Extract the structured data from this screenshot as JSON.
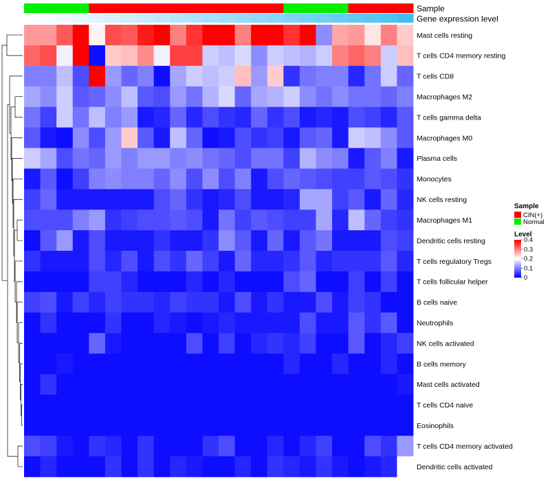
{
  "chart_data": {
    "type": "heatmap",
    "title": "",
    "clustering": "rows",
    "n_samples": 24,
    "annotation_tracks": [
      {
        "label": "Sample",
        "values": [
          "Normal",
          "Normal",
          "Normal",
          "Normal",
          "CIN(+)",
          "CIN(+)",
          "CIN(+)",
          "CIN(+)",
          "CIN(+)",
          "CIN(+)",
          "CIN(+)",
          "CIN(+)",
          "CIN(+)",
          "CIN(+)",
          "CIN(+)",
          "CIN(+)",
          "Normal",
          "Normal",
          "Normal",
          "Normal",
          "CIN(+)",
          "CIN(+)",
          "CIN(+)",
          "CIN(+)"
        ]
      },
      {
        "label": "Gene expression level",
        "values": [
          0,
          0.04,
          0.08,
          0.13,
          0.17,
          0.21,
          0.25,
          0.29,
          0.33,
          0.38,
          0.42,
          0.46,
          0.5,
          0.54,
          0.58,
          0.63,
          0.67,
          0.71,
          0.75,
          0.79,
          0.83,
          0.88,
          0.92,
          1.0
        ]
      }
    ],
    "sample_colors": {
      "CIN(+)": "#ff0000",
      "Normal": "#00ee00"
    },
    "level_colors": {
      "low": "#ffffff",
      "high": "#40bff0"
    },
    "rows": [
      "Mast cells resting",
      "T cells CD4 memory resting",
      "T cells CD8",
      "Macrophages M2",
      "T cells gamma delta",
      "Macrophages M0",
      "Plasma cells",
      "Monocytes",
      "NK cells resting",
      "Macrophages M1",
      "Dendritic cells resting",
      "T cells regulatory  Tregs",
      "T cells follicular helper",
      "B cells naive",
      "Neutrophils",
      "NK cells activated",
      "B cells memory",
      "Mast cells activated",
      "T cells CD4 naive",
      "Eosinophils",
      "T cells CD4 memory activated",
      "Dendritic cells activated"
    ],
    "values": [
      [
        0.28,
        0.28,
        0.33,
        0.4,
        0.21,
        0.34,
        0.33,
        0.38,
        0.4,
        0.3,
        0.36,
        0.4,
        0.4,
        0.3,
        0.4,
        0.4,
        0.36,
        0.4,
        0.11,
        0.27,
        0.28,
        0.22,
        0.3,
        0.24
      ],
      [
        0.32,
        0.34,
        0.19,
        0.4,
        0.01,
        0.24,
        0.25,
        0.29,
        0.19,
        0.35,
        0.35,
        0.16,
        0.15,
        0.17,
        0.11,
        0.16,
        0.15,
        0.14,
        0.16,
        0.3,
        0.32,
        0.3,
        0.16,
        0.25
      ],
      [
        0.1,
        0.1,
        0.15,
        0.06,
        0.4,
        0.12,
        0.08,
        0.1,
        0.01,
        0.13,
        0.16,
        0.15,
        0.16,
        0.25,
        0.12,
        0.24,
        0.04,
        0.09,
        0.1,
        0.1,
        0.03,
        0.09,
        0.16,
        0.08
      ],
      [
        0.13,
        0.11,
        0.16,
        0.07,
        0.08,
        0.11,
        0.15,
        0.07,
        0.06,
        0.12,
        0.09,
        0.14,
        0.17,
        0.08,
        0.13,
        0.14,
        0.16,
        0.11,
        0.09,
        0.11,
        0.09,
        0.09,
        0.08,
        0.1
      ],
      [
        0.09,
        0.05,
        0.16,
        0.09,
        0.15,
        0.1,
        0.12,
        0.02,
        0.03,
        0.08,
        0.03,
        0.06,
        0.04,
        0.03,
        0.08,
        0.04,
        0.06,
        0.02,
        0.03,
        0.02,
        0.06,
        0.05,
        0.03,
        0.07
      ],
      [
        0.07,
        0.02,
        0.01,
        0.11,
        0.06,
        0.12,
        0.24,
        0.07,
        0.02,
        0.15,
        0.08,
        0.01,
        0.02,
        0.06,
        0.04,
        0.05,
        0.02,
        0.07,
        0.08,
        0.02,
        0.16,
        0.15,
        0.11,
        0.07
      ],
      [
        0.16,
        0.13,
        0.06,
        0.09,
        0.08,
        0.12,
        0.1,
        0.12,
        0.12,
        0.1,
        0.11,
        0.09,
        0.08,
        0.06,
        0.09,
        0.09,
        0.05,
        0.14,
        0.11,
        0.1,
        0.02,
        0.07,
        0.1,
        0.02
      ],
      [
        0.02,
        0.07,
        0.01,
        0.05,
        0.1,
        0.11,
        0.1,
        0.1,
        0.08,
        0.11,
        0.06,
        0.11,
        0.06,
        0.1,
        0.02,
        0.06,
        0.08,
        0.07,
        0.06,
        0.05,
        0.05,
        0.07,
        0.06,
        0.04
      ],
      [
        0.05,
        0.08,
        0.02,
        0.02,
        0.02,
        0.02,
        0.02,
        0.02,
        0.06,
        0.08,
        0.04,
        0.02,
        0.03,
        0.06,
        0.02,
        0.02,
        0.03,
        0.13,
        0.13,
        0.05,
        0.07,
        0.02,
        0.08,
        0.03
      ],
      [
        0.06,
        0.06,
        0.06,
        0.1,
        0.12,
        0.04,
        0.05,
        0.06,
        0.06,
        0.07,
        0.06,
        0.02,
        0.09,
        0.05,
        0.07,
        0.06,
        0.05,
        0.05,
        0.13,
        0.03,
        0.15,
        0.08,
        0.05,
        0.04
      ],
      [
        0.01,
        0.07,
        0.12,
        0.02,
        0.06,
        0.02,
        0.02,
        0.02,
        0.04,
        0.02,
        0.02,
        0.04,
        0.11,
        0.07,
        0.02,
        0.08,
        0.02,
        0.07,
        0.09,
        0.02,
        0.02,
        0.02,
        0.06,
        0.05
      ],
      [
        0.04,
        0.02,
        0.02,
        0.02,
        0.06,
        0.03,
        0.06,
        0.02,
        0.06,
        0.04,
        0.08,
        0.05,
        0.02,
        0.08,
        0.03,
        0.03,
        0.04,
        0.07,
        0.03,
        0.04,
        0.04,
        0.04,
        0.07,
        0.03
      ],
      [
        0.01,
        0.01,
        0.01,
        0.01,
        0.05,
        0.05,
        0.03,
        0.01,
        0.01,
        0.01,
        0.03,
        0.01,
        0.03,
        0.01,
        0.01,
        0.01,
        0.06,
        0.08,
        0.01,
        0.01,
        0.05,
        0.01,
        0.05,
        0.01
      ],
      [
        0.05,
        0.06,
        0.02,
        0.05,
        0.03,
        0.05,
        0.04,
        0.04,
        0.03,
        0.05,
        0.04,
        0.04,
        0.02,
        0.06,
        0.02,
        0.04,
        0.02,
        0.02,
        0.06,
        0.02,
        0.05,
        0.04,
        0.01,
        0.01
      ],
      [
        0.01,
        0.04,
        0.01,
        0.01,
        0.01,
        0.04,
        0.01,
        0.01,
        0.03,
        0.02,
        0.01,
        0.02,
        0.03,
        0.02,
        0.02,
        0.02,
        0.02,
        0.06,
        0.02,
        0.02,
        0.07,
        0.04,
        0.07,
        0.01
      ],
      [
        0.01,
        0.01,
        0.01,
        0.01,
        0.08,
        0.02,
        0.01,
        0.01,
        0.01,
        0.01,
        0.06,
        0.01,
        0.05,
        0.01,
        0.03,
        0.04,
        0.03,
        0.05,
        0.01,
        0.01,
        0.07,
        0.01,
        0.03,
        0.05
      ],
      [
        0.01,
        0.01,
        0.02,
        0.01,
        0.01,
        0.01,
        0.01,
        0.01,
        0.01,
        0.01,
        0.01,
        0.01,
        0.01,
        0.01,
        0.01,
        0.01,
        0.03,
        0.01,
        0.01,
        0.03,
        0.01,
        0.01,
        0.03,
        0.01
      ],
      [
        0.01,
        0.04,
        0.01,
        0.01,
        0.01,
        0.01,
        0.01,
        0.01,
        0.01,
        0.01,
        0.01,
        0.01,
        0.01,
        0.01,
        0.01,
        0.01,
        0.01,
        0.01,
        0.01,
        0.01,
        0.01,
        0.01,
        0.01,
        0.02
      ],
      [
        0.01,
        0.01,
        0.01,
        0.01,
        0.01,
        0.01,
        0.01,
        0.01,
        0.01,
        0.01,
        0.01,
        0.01,
        0.01,
        0.01,
        0.01,
        0.01,
        0.01,
        0.01,
        0.01,
        0.01,
        0.01,
        0.01,
        0.01,
        0.01
      ],
      [
        0.01,
        0.01,
        0.01,
        0.01,
        0.01,
        0.01,
        0.01,
        0.01,
        0.01,
        0.01,
        0.01,
        0.01,
        0.01,
        0.01,
        0.01,
        0.01,
        0.01,
        0.01,
        0.01,
        0.01,
        0.01,
        0.01,
        0.01,
        0.01
      ],
      [
        0.06,
        0.05,
        0.02,
        0.01,
        0.04,
        0.03,
        0.01,
        0.04,
        0.01,
        0.01,
        0.01,
        0.04,
        0.06,
        0.01,
        0.01,
        0.03,
        0.01,
        0.03,
        0.05,
        0.01,
        0.01,
        0.06,
        0.04,
        0.12
      ],
      [
        0.01,
        0.03,
        0.01,
        0.01,
        0.01,
        0.04,
        0.01,
        0.04,
        0.01,
        0.03,
        0.02,
        0.01,
        0.01,
        0.03,
        0.01,
        0.04,
        0.03,
        0.02,
        0.04,
        0.02,
        0.01,
        0.02,
        0.03,
        0.2
      ]
    ],
    "color_scale": {
      "min": 0,
      "mid": 0.2,
      "max": 0.4,
      "low": "#0000ff",
      "midcolor": "#ffffff",
      "high": "#ff0000"
    },
    "legend": {
      "sample_title": "Sample",
      "sample_items": [
        "CIN(+)",
        "Normal"
      ],
      "level_title": "Level",
      "level_ticks": [
        "0.4",
        "0.3",
        "0.2",
        "0.1",
        "0"
      ]
    }
  }
}
